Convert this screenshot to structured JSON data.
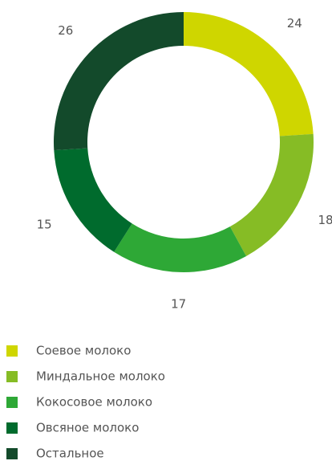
{
  "chart_data": {
    "type": "donut",
    "categories": [
      "Соевое молоко",
      "Миндальное молоко",
      "Кокосовое молоко",
      "Овсяное молоко",
      "Остальное"
    ],
    "values": [
      24,
      18,
      17,
      15,
      26
    ],
    "colors": [
      "#cfd600",
      "#86bc25",
      "#2ea836",
      "#006b2d",
      "#134a2b"
    ],
    "legend": "bottom"
  }
}
